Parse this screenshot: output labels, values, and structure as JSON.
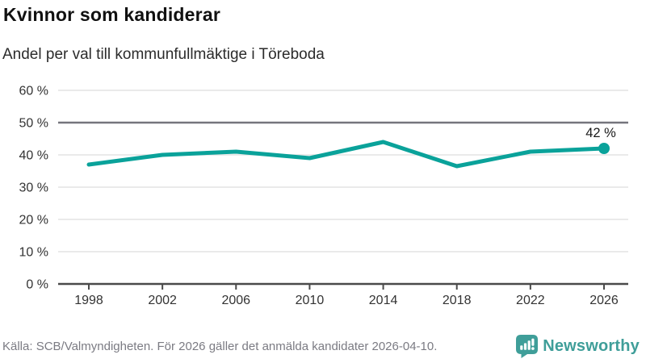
{
  "chart_data": {
    "type": "line",
    "title": "Kvinnor som kandiderar",
    "subtitle": "Andel per val till kommunfullmäktige i Töreboda",
    "x": [
      1998,
      2002,
      2006,
      2010,
      2014,
      2018,
      2022,
      2026
    ],
    "x_tick_labels": [
      "1998",
      "2002",
      "2006",
      "2010",
      "2014",
      "2018",
      "2022",
      "2026"
    ],
    "values": [
      37,
      40,
      41,
      39,
      44,
      36.5,
      41,
      42
    ],
    "ylim": [
      0,
      60
    ],
    "y_ticks": [
      0,
      10,
      20,
      30,
      40,
      50,
      60
    ],
    "y_tick_labels": [
      "0 %",
      "10 %",
      "20 %",
      "30 %",
      "40 %",
      "50 %",
      "60 %"
    ],
    "grid": true,
    "legend": "none",
    "reference_line": 50,
    "end_label": "42 %"
  },
  "footer": {
    "source": "Källa: SCB/Valmyndigheten. För 2026 gäller det anmälda kandidater 2026-04-10.",
    "brand": "Newsworthy"
  },
  "colors": {
    "line": "#0aa29a",
    "marker": "#0aa29a",
    "grid": "#e3e3e3",
    "reference_line": "#75757c",
    "axis": "#4a4a4a",
    "tick_text": "#333333",
    "end_label_text": "#1a1a1a",
    "title_text": "#111111",
    "subtitle_text": "#2b2b2b",
    "source_text": "#7b7b83",
    "brand": "#3f9e99",
    "background": "#ffffff"
  }
}
